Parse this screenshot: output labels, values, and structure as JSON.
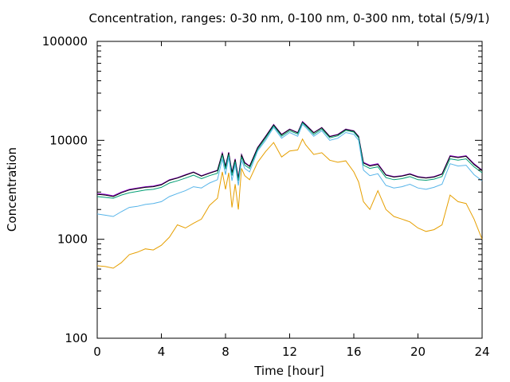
{
  "chart_data": {
    "type": "line",
    "title": "Concentration, ranges: 0-30 nm, 0-100 nm, 0-300 nm, total (5/9/1)",
    "xlabel": "Time [hour]",
    "ylabel": "Concentration",
    "xlim": [
      0,
      24
    ],
    "ylim": [
      100,
      100000
    ],
    "yscale": "log",
    "grid": false,
    "x_ticks": [
      0,
      4,
      8,
      12,
      16,
      20,
      24
    ],
    "x_tick_labels": [
      "0",
      "4",
      "8",
      "12",
      "16",
      "20",
      "24"
    ],
    "y_ticks": [
      100,
      1000,
      10000,
      100000
    ],
    "y_tick_labels": [
      "100",
      "1000",
      "10000",
      "100000"
    ],
    "x": [
      0,
      0.5,
      1,
      1.5,
      2,
      2.5,
      3,
      3.5,
      4,
      4.5,
      5,
      5.5,
      6,
      6.5,
      7,
      7.5,
      7.8,
      8,
      8.2,
      8.4,
      8.6,
      8.8,
      9,
      9.2,
      9.5,
      10,
      10.5,
      11,
      11.5,
      12,
      12.5,
      12.8,
      13,
      13.5,
      14,
      14.5,
      15,
      15.5,
      16,
      16.3,
      16.6,
      17,
      17.5,
      18,
      18.5,
      19,
      19.5,
      20,
      20.5,
      21,
      21.5,
      22,
      22.5,
      23,
      23.5,
      24
    ],
    "series": [
      {
        "color": "#9400d3",
        "values": [
          2900,
          2850,
          2750,
          3000,
          3200,
          3300,
          3400,
          3450,
          3600,
          4000,
          4200,
          4500,
          4800,
          4400,
          4700,
          5000,
          7500,
          5500,
          7600,
          4800,
          6500,
          4200,
          7200,
          6000,
          5500,
          8500,
          11000,
          14500,
          11500,
          13000,
          12000,
          15500,
          14500,
          12000,
          13500,
          11000,
          11500,
          13000,
          12500,
          11000,
          6000,
          5600,
          5800,
          4500,
          4300,
          4400,
          4600,
          4300,
          4200,
          4300,
          4600,
          7000,
          6800,
          7000,
          5800,
          5000
        ]
      },
      {
        "color": "#000000",
        "values": [
          2850,
          2800,
          2700,
          2950,
          3150,
          3250,
          3350,
          3400,
          3550,
          3950,
          4150,
          4450,
          4750,
          4350,
          4650,
          4950,
          7400,
          5400,
          7500,
          4700,
          6400,
          4100,
          7100,
          5900,
          5450,
          8400,
          10900,
          14300,
          11400,
          12900,
          11900,
          15300,
          14300,
          11900,
          13400,
          10900,
          11400,
          12900,
          12400,
          10900,
          5900,
          5500,
          5700,
          4450,
          4250,
          4350,
          4550,
          4250,
          4150,
          4250,
          4550,
          6900,
          6700,
          6900,
          5700,
          4950
        ]
      },
      {
        "color": "#009e73",
        "values": [
          2700,
          2650,
          2600,
          2800,
          2950,
          3050,
          3150,
          3200,
          3350,
          3700,
          3900,
          4150,
          4450,
          4100,
          4400,
          4650,
          7100,
          5100,
          7200,
          4400,
          6100,
          3900,
          6800,
          5600,
          5200,
          8100,
          10500,
          14000,
          11000,
          12500,
          11600,
          15000,
          14000,
          11500,
          13000,
          10600,
          11100,
          12600,
          12100,
          10600,
          5600,
          5200,
          5400,
          4200,
          4000,
          4100,
          4300,
          4000,
          3950,
          4050,
          4300,
          6500,
          6300,
          6500,
          5400,
          4700
        ]
      },
      {
        "color": "#56b4e9",
        "values": [
          1800,
          1750,
          1700,
          1900,
          2100,
          2150,
          2250,
          2300,
          2400,
          2700,
          2900,
          3100,
          3400,
          3300,
          3700,
          4000,
          6500,
          4500,
          6800,
          3900,
          5700,
          3500,
          6300,
          5200,
          4800,
          7800,
          10000,
          13500,
          10500,
          12000,
          11000,
          14500,
          13500,
          11000,
          12500,
          10000,
          10500,
          12000,
          11500,
          10000,
          5000,
          4400,
          4600,
          3500,
          3300,
          3400,
          3600,
          3300,
          3200,
          3350,
          3600,
          5800,
          5500,
          5600,
          4500,
          3900
        ]
      },
      {
        "color": "#e69f00",
        "values": [
          540,
          530,
          510,
          580,
          700,
          740,
          800,
          780,
          870,
          1050,
          1400,
          1300,
          1450,
          1600,
          2200,
          2600,
          4800,
          3200,
          4700,
          2100,
          3600,
          2000,
          5200,
          4400,
          4000,
          6000,
          7700,
          9500,
          6800,
          7800,
          8000,
          10300,
          9000,
          7200,
          7500,
          6300,
          6000,
          6200,
          4800,
          3800,
          2400,
          2000,
          3100,
          2000,
          1700,
          1600,
          1500,
          1300,
          1200,
          1250,
          1400,
          2800,
          2400,
          2300,
          1600,
          1000
        ]
      }
    ]
  }
}
